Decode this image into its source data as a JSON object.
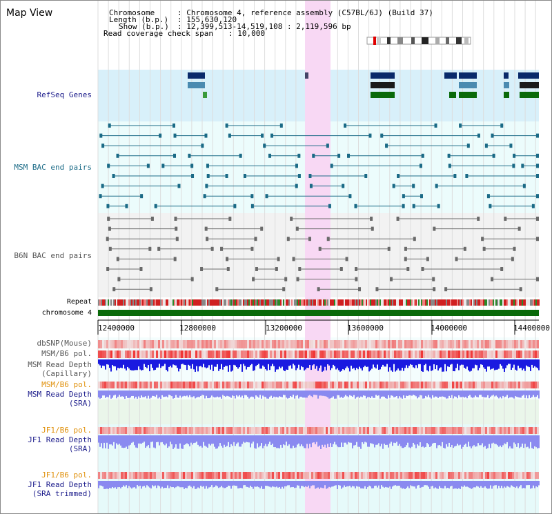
{
  "view": {
    "title": "Map View"
  },
  "info": {
    "chromosome_label": "Chromosome",
    "chromosome_value": ": Chromosome 4, reference assembly (C57BL/6J) (Build 37)",
    "length_label": "Length (b.p.)",
    "length_value": ": 155,630,120",
    "show_label": "Show (b.p.)",
    "show_value": ": 12,399,513-14,519,108 : 2,119,596 bp",
    "coverage_label": "Read coverage check span",
    "coverage_value": ": 10,000"
  },
  "tracks": {
    "refseq": "RefSeq Genes",
    "msm_bac": "MSM BAC end pairs",
    "b6n_bac": "B6N BAC end pairs",
    "repeat": "Repeat",
    "chromosome": "chromosome 4",
    "dbsnp": "dbSNP(Mouse)",
    "msm_b6_pol": "MSM/B6 pol.",
    "msm_depth_cap_1": "MSM Read Depth",
    "msm_depth_cap_2": "(Capillary)",
    "msm_b6_pol_2": "MSM/B6 pol.",
    "msm_depth_sra_1": "MSM Read Depth",
    "msm_depth_sra_2": "(SRA)",
    "jf1_b6_pol": "JF1/B6 pol.",
    "jf1_depth_sra_1": "JF1 Read Depth",
    "jf1_depth_sra_2": "(SRA)",
    "jf1_b6_pol_2": "JF1/B6 pol.",
    "jf1_depth_trim_1": "JF1 Read Depth",
    "jf1_depth_trim_2": "(SRA trimmed)"
  },
  "axis": {
    "ticks": [
      "12400000",
      "12800000",
      "13200000",
      "13600000",
      "14000000",
      "14400000"
    ]
  },
  "colors": {
    "refseq_bg": "#d8f0fa",
    "bac_bg": "#ecfcfc",
    "highlight": "#f8d8f4",
    "msm_line": "#1a6a86",
    "b6n_line": "#6a6a6a",
    "chromosome": "#0a6a0a",
    "depth_dark": "#1a1ae0",
    "depth_light": "#8a8af0",
    "pol_red": "#e04040",
    "label_navy": "#1a1a8a",
    "label_teal": "#1a6a86",
    "label_orange": "#e0900a"
  }
}
